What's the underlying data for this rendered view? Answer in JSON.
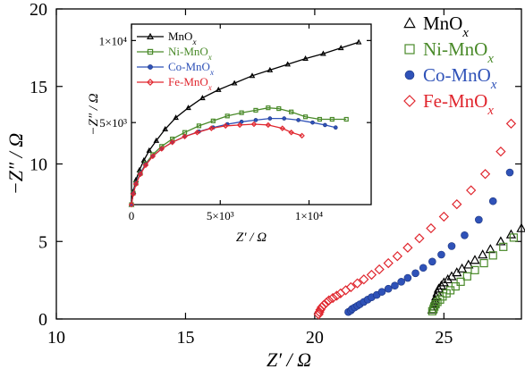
{
  "chart_data": [
    {
      "type": "scatter",
      "xlabel": "Z′ / Ω",
      "ylabel": "−Z″ / Ω",
      "xlim": [
        10,
        28
      ],
      "ylim": [
        0,
        20
      ],
      "xticks": [
        "10",
        "15",
        "20",
        "25"
      ],
      "yticks": [
        "0",
        "5",
        "10",
        "15",
        "20"
      ],
      "grid": false,
      "legend_position": "top-right",
      "series": [
        {
          "name": "MnOx",
          "color": "#000000",
          "marker": "triangle-open",
          "x": [
            24.55,
            24.6,
            24.62,
            24.65,
            24.7,
            24.75,
            24.8,
            24.9,
            25.0,
            25.15,
            25.3,
            25.5,
            25.7,
            25.95,
            26.2,
            26.5,
            26.8,
            27.2,
            27.6,
            28.0
          ],
          "y": [
            0.6,
            0.8,
            1.0,
            1.2,
            1.45,
            1.7,
            1.95,
            2.15,
            2.35,
            2.55,
            2.75,
            3.0,
            3.25,
            3.5,
            3.8,
            4.15,
            4.5,
            5.0,
            5.45,
            5.85
          ]
        },
        {
          "name": "Ni-MnOx",
          "color": "#4a8a2a",
          "marker": "square-open",
          "x": [
            24.55,
            24.6,
            24.63,
            24.68,
            24.75,
            24.85,
            24.95,
            25.1,
            25.25,
            25.45,
            25.65,
            25.9,
            26.2,
            26.55,
            26.9,
            27.3,
            27.7
          ],
          "y": [
            0.5,
            0.65,
            0.8,
            0.95,
            1.1,
            1.25,
            1.45,
            1.65,
            1.85,
            2.1,
            2.4,
            2.75,
            3.15,
            3.6,
            4.1,
            4.65,
            5.25
          ]
        },
        {
          "name": "Co-MnOx",
          "color": "#2f52b8",
          "marker": "circle-filled",
          "x": [
            21.3,
            21.4,
            21.45,
            21.55,
            21.65,
            21.75,
            21.9,
            22.05,
            22.2,
            22.4,
            22.6,
            22.85,
            23.1,
            23.35,
            23.6,
            23.9,
            24.2,
            24.55,
            24.9,
            25.3,
            25.8,
            26.35,
            26.9,
            27.55
          ],
          "y": [
            0.45,
            0.55,
            0.65,
            0.75,
            0.85,
            0.95,
            1.1,
            1.25,
            1.4,
            1.55,
            1.75,
            1.95,
            2.15,
            2.4,
            2.65,
            2.95,
            3.3,
            3.7,
            4.15,
            4.7,
            5.4,
            6.4,
            7.6,
            9.45
          ]
        },
        {
          "name": "Fe-MnOx",
          "color": "#e0262e",
          "marker": "diamond-open",
          "x": [
            20.15,
            20.18,
            20.22,
            20.27,
            20.35,
            20.45,
            20.55,
            20.7,
            20.85,
            21.0,
            21.2,
            21.4,
            21.65,
            21.9,
            22.2,
            22.5,
            22.85,
            23.2,
            23.6,
            24.05,
            24.5,
            25.0,
            25.5,
            26.05,
            26.6,
            27.2,
            27.6
          ],
          "y": [
            0.3,
            0.45,
            0.6,
            0.75,
            0.9,
            1.05,
            1.2,
            1.35,
            1.5,
            1.65,
            1.85,
            2.05,
            2.3,
            2.55,
            2.85,
            3.2,
            3.6,
            4.05,
            4.6,
            5.2,
            5.85,
            6.6,
            7.4,
            8.3,
            9.35,
            10.8,
            12.6
          ]
        }
      ]
    },
    {
      "type": "line",
      "xlabel": "Z′ / Ω",
      "ylabel": "−Z″ / Ω",
      "xlim": [
        0,
        13500
      ],
      "ylim": [
        0,
        11000
      ],
      "xticks": [
        "0",
        "5×10³",
        "1×10⁴"
      ],
      "yticks": [
        "5×10³",
        "1×10⁴"
      ],
      "grid": false,
      "legend_position": "top-left",
      "series": [
        {
          "name": "MnOx",
          "color": "#000000",
          "marker": "triangle-open",
          "x": [
            0,
            100,
            250,
            450,
            700,
            1000,
            1400,
            1900,
            2500,
            3200,
            4000,
            4900,
            5800,
            6800,
            7800,
            8800,
            9800,
            10800,
            11800,
            12800
          ],
          "y": [
            0,
            800,
            1500,
            2100,
            2700,
            3300,
            3900,
            4600,
            5300,
            5900,
            6500,
            7000,
            7400,
            7850,
            8200,
            8550,
            8900,
            9200,
            9550,
            9900
          ]
        },
        {
          "name": "Ni-MnOx",
          "color": "#4a8a2a",
          "marker": "square-open",
          "x": [
            0,
            100,
            250,
            500,
            800,
            1200,
            1700,
            2300,
            3000,
            3800,
            4600,
            5400,
            6200,
            7000,
            7700,
            8300,
            9000,
            9800,
            10600,
            11300,
            12100
          ],
          "y": [
            0,
            700,
            1300,
            1900,
            2500,
            3050,
            3550,
            4000,
            4400,
            4800,
            5100,
            5400,
            5600,
            5750,
            5900,
            5850,
            5650,
            5350,
            5200,
            5200,
            5200
          ]
        },
        {
          "name": "Co-MnOx",
          "color": "#2f52b8",
          "marker": "circle-filled",
          "x": [
            0,
            100,
            250,
            500,
            800,
            1200,
            1700,
            2300,
            3000,
            3800,
            4600,
            5400,
            6200,
            7000,
            7800,
            8600,
            9400,
            10200,
            10900,
            11500
          ],
          "y": [
            0,
            700,
            1300,
            1900,
            2450,
            2950,
            3400,
            3800,
            4150,
            4450,
            4700,
            4900,
            5050,
            5150,
            5250,
            5250,
            5150,
            5000,
            4850,
            4700
          ]
        },
        {
          "name": "Fe-MnOx",
          "color": "#e0262e",
          "marker": "diamond-open",
          "x": [
            0,
            100,
            250,
            500,
            800,
            1200,
            1700,
            2300,
            3000,
            3700,
            4500,
            5300,
            6100,
            6900,
            7700,
            8500,
            9000,
            9600
          ],
          "y": [
            0,
            650,
            1250,
            1850,
            2400,
            2950,
            3400,
            3800,
            4150,
            4400,
            4650,
            4800,
            4850,
            4900,
            4850,
            4650,
            4400,
            4200
          ]
        }
      ]
    }
  ]
}
